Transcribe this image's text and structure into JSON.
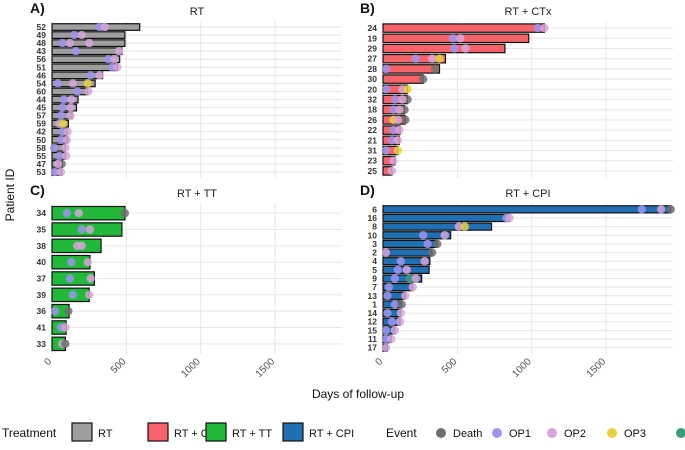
{
  "figure": {
    "ylabel": "Patient ID",
    "xlabel": "Days of follow-up"
  },
  "colors": {
    "RT": "#9e9e9e",
    "RT + CTx": "#f8636a",
    "RT + TT": "#22b83a",
    "RT + CPI": "#1f6fb2",
    "Death": "#6e6e6e",
    "OP1": "#9e94ee",
    "OP2": "#d6a6d8",
    "OP3": "#e5d23e",
    "OP4": "#3f9a7c",
    "grid": "#e6e6e6"
  },
  "legend": {
    "treatment_title": "Treatment",
    "treatments": [
      "RT",
      "RT + CTx",
      "RT + TT",
      "RT + CPI"
    ],
    "event_title": "Event",
    "events": [
      "Death",
      "OP1",
      "OP2",
      "OP3"
    ]
  },
  "chart_data": [
    {
      "type": "bar",
      "orientation": "horizontal",
      "tag": "A)",
      "title": "RT",
      "xlim": [
        0,
        1950
      ],
      "xticks": [],
      "series": "RT",
      "patients": [
        "52",
        "49",
        "48",
        "43",
        "56",
        "51",
        "46",
        "54",
        "60",
        "44",
        "45",
        "57",
        "59",
        "42",
        "50",
        "58",
        "55",
        "47",
        "53"
      ],
      "values": [
        590,
        490,
        490,
        470,
        455,
        440,
        340,
        290,
        240,
        175,
        165,
        135,
        110,
        100,
        105,
        90,
        90,
        70,
        65
      ],
      "events": [
        [
          {
            "day": 320,
            "event": "OP1"
          },
          {
            "day": 355,
            "event": "OP2"
          }
        ],
        [
          {
            "day": 150,
            "event": "OP1"
          },
          {
            "day": 200,
            "event": "OP2"
          }
        ],
        [
          {
            "day": 70,
            "event": "OP1"
          },
          {
            "day": 120,
            "event": "OP2"
          },
          {
            "day": 250,
            "event": "OP2"
          }
        ],
        [
          {
            "day": 160,
            "event": "OP1"
          },
          {
            "day": 450,
            "event": "OP2"
          }
        ],
        [
          {
            "day": 380,
            "event": "OP1"
          },
          {
            "day": 420,
            "event": "OP2"
          }
        ],
        [
          {
            "day": 405,
            "event": "OP1"
          },
          {
            "day": 440,
            "event": "OP2"
          }
        ],
        [
          {
            "day": 260,
            "event": "OP1"
          },
          {
            "day": 320,
            "event": "OP2"
          }
        ],
        [
          {
            "day": 40,
            "event": "OP1"
          },
          {
            "day": 140,
            "event": "OP2"
          },
          {
            "day": 240,
            "event": "OP3"
          }
        ],
        [
          {
            "day": 170,
            "event": "OP1"
          },
          {
            "day": 245,
            "event": "OP2"
          }
        ],
        [
          {
            "day": 80,
            "event": "OP1"
          },
          {
            "day": 130,
            "event": "OP2"
          }
        ],
        [
          {
            "day": 70,
            "event": "OP1"
          },
          {
            "day": 125,
            "event": "OP2"
          }
        ],
        [
          {
            "day": 60,
            "event": "OP1"
          },
          {
            "day": 125,
            "event": "OP2"
          }
        ],
        [
          {
            "day": 50,
            "event": "OP2"
          },
          {
            "day": 75,
            "event": "OP3"
          }
        ],
        [
          {
            "day": 70,
            "event": "OP1"
          },
          {
            "day": 105,
            "event": "OP2"
          }
        ],
        [
          {
            "day": 60,
            "event": "OP1"
          },
          {
            "day": 100,
            "event": "OP2"
          }
        ],
        [
          {
            "day": 15,
            "event": "OP1"
          },
          {
            "day": 90,
            "event": "OP2"
          }
        ],
        [
          {
            "day": 50,
            "event": "OP1"
          },
          {
            "day": 95,
            "event": "OP2"
          }
        ],
        [
          {
            "day": 65,
            "event": "Death"
          },
          {
            "day": 40,
            "event": "OP2"
          }
        ],
        [
          {
            "day": 20,
            "event": "OP1"
          },
          {
            "day": 60,
            "event": "OP2"
          }
        ]
      ]
    },
    {
      "type": "bar",
      "orientation": "horizontal",
      "tag": "B)",
      "title": "RT + CTx",
      "xlim": [
        0,
        1950
      ],
      "xticks": [],
      "series": "RT + CTx",
      "patients": [
        "24",
        "19",
        "29",
        "27",
        "28",
        "30",
        "20",
        "32",
        "18",
        "26",
        "22",
        "21",
        "31",
        "23",
        "25"
      ],
      "values": [
        1085,
        980,
        820,
        420,
        380,
        270,
        165,
        165,
        145,
        150,
        115,
        110,
        100,
        80,
        60
      ],
      "events": [
        [
          {
            "day": 1040,
            "event": "OP1"
          },
          {
            "day": 1085,
            "event": "OP2"
          }
        ],
        [
          {
            "day": 470,
            "event": "OP1"
          },
          {
            "day": 520,
            "event": "OP2"
          }
        ],
        [
          {
            "day": 480,
            "event": "OP1"
          },
          {
            "day": 555,
            "event": "OP2"
          }
        ],
        [
          {
            "day": 220,
            "event": "OP1"
          },
          {
            "day": 330,
            "event": "OP2"
          },
          {
            "day": 380,
            "event": "OP3"
          }
        ],
        [
          {
            "day": 20,
            "event": "OP1"
          },
          {
            "day": 350,
            "event": "Death"
          }
        ],
        [
          {
            "day": 270,
            "event": "Death"
          }
        ],
        [
          {
            "day": 20,
            "event": "OP1"
          },
          {
            "day": 130,
            "event": "OP2"
          },
          {
            "day": 165,
            "event": "OP3"
          }
        ],
        [
          {
            "day": 165,
            "event": "Death"
          },
          {
            "day": 80,
            "event": "OP1"
          },
          {
            "day": 130,
            "event": "OP2"
          }
        ],
        [
          {
            "day": 145,
            "event": "Death"
          },
          {
            "day": 70,
            "event": "OP1"
          },
          {
            "day": 110,
            "event": "OP2"
          }
        ],
        [
          {
            "day": 150,
            "event": "Death"
          },
          {
            "day": 70,
            "event": "OP3"
          },
          {
            "day": 100,
            "event": "OP2"
          }
        ],
        [
          {
            "day": 70,
            "event": "OP1"
          },
          {
            "day": 110,
            "event": "OP2"
          }
        ],
        [
          {
            "day": 60,
            "event": "OP1"
          },
          {
            "day": 100,
            "event": "OP2"
          }
        ],
        [
          {
            "day": 20,
            "event": "OP1"
          },
          {
            "day": 100,
            "event": "OP3"
          }
        ],
        [
          {
            "day": 70,
            "event": "OP2"
          }
        ],
        [
          {
            "day": 60,
            "event": "OP2"
          }
        ]
      ]
    },
    {
      "type": "bar",
      "orientation": "horizontal",
      "tag": "C)",
      "title": "RT + TT",
      "xlim": [
        0,
        1950
      ],
      "xticks": [
        0,
        500,
        1000,
        1500
      ],
      "series": "RT + TT",
      "patients": [
        "34",
        "35",
        "38",
        "40",
        "37",
        "39",
        "36",
        "41",
        "33"
      ],
      "values": [
        490,
        470,
        330,
        255,
        285,
        250,
        115,
        95,
        90
      ],
      "events": [
        [
          {
            "day": 490,
            "event": "Death"
          },
          {
            "day": 100,
            "event": "OP1"
          },
          {
            "day": 180,
            "event": "OP2"
          }
        ],
        [
          {
            "day": 200,
            "event": "OP1"
          },
          {
            "day": 255,
            "event": "OP2"
          }
        ],
        [
          {
            "day": 170,
            "event": "OP2"
          },
          {
            "day": 200,
            "event": "OP2"
          }
        ],
        [
          {
            "day": 130,
            "event": "OP1"
          },
          {
            "day": 240,
            "event": "OP2"
          }
        ],
        [
          {
            "day": 120,
            "event": "OP1"
          },
          {
            "day": 260,
            "event": "OP2"
          }
        ],
        [
          {
            "day": 140,
            "event": "OP1"
          },
          {
            "day": 250,
            "event": "OP2"
          }
        ],
        [
          {
            "day": 110,
            "event": "Death"
          },
          {
            "day": 20,
            "event": "OP1"
          }
        ],
        [
          {
            "day": 60,
            "event": "OP1"
          },
          {
            "day": 90,
            "event": "OP2"
          }
        ],
        [
          {
            "day": 70,
            "event": "OP2"
          },
          {
            "day": 90,
            "event": "Death"
          }
        ]
      ]
    },
    {
      "type": "bar",
      "orientation": "horizontal",
      "tag": "D)",
      "title": "RT + CPI",
      "xlim": [
        0,
        1950
      ],
      "xticks": [
        0,
        500,
        1000,
        1500
      ],
      "series": "RT + CPI",
      "patients": [
        "6",
        "16",
        "8",
        "10",
        "3",
        "2",
        "4",
        "5",
        "9",
        "7",
        "13",
        "1",
        "14",
        "12",
        "15",
        "11",
        "17"
      ],
      "values": [
        1935,
        850,
        730,
        455,
        365,
        330,
        315,
        310,
        260,
        200,
        150,
        125,
        120,
        115,
        80,
        55,
        30
      ],
      "events": [
        [
          {
            "day": 1740,
            "event": "OP1"
          },
          {
            "day": 1870,
            "event": "OP2"
          },
          {
            "day": 1935,
            "event": "Death"
          }
        ],
        [
          {
            "day": 830,
            "event": "OP1"
          },
          {
            "day": 850,
            "event": "OP2"
          }
        ],
        [
          {
            "day": 510,
            "event": "OP2"
          },
          {
            "day": 550,
            "event": "OP3"
          }
        ],
        [
          {
            "day": 270,
            "event": "OP1"
          },
          {
            "day": 415,
            "event": "OP2"
          }
        ],
        [
          {
            "day": 300,
            "event": "OP1"
          },
          {
            "day": 365,
            "event": "Death"
          }
        ],
        [
          {
            "day": 20,
            "event": "OP2"
          },
          {
            "day": 330,
            "event": "Death"
          }
        ],
        [
          {
            "day": 120,
            "event": "OP1"
          },
          {
            "day": 280,
            "event": "OP2"
          }
        ],
        [
          {
            "day": 100,
            "event": "OP1"
          },
          {
            "day": 160,
            "event": "OP2"
          }
        ],
        [
          {
            "day": 80,
            "event": "OP1"
          },
          {
            "day": 180,
            "event": "OP4"
          },
          {
            "day": 220,
            "event": "OP2"
          }
        ],
        [
          {
            "day": 40,
            "event": "OP1"
          },
          {
            "day": 200,
            "event": "OP2"
          }
        ],
        [
          {
            "day": 30,
            "event": "OP1"
          },
          {
            "day": 150,
            "event": "OP2"
          }
        ],
        [
          {
            "day": 80,
            "event": "OP1"
          },
          {
            "day": 125,
            "event": "Death"
          }
        ],
        [
          {
            "day": 30,
            "event": "OP1"
          },
          {
            "day": 120,
            "event": "OP2"
          }
        ],
        [
          {
            "day": 60,
            "event": "OP1"
          },
          {
            "day": 115,
            "event": "OP2"
          }
        ],
        [
          {
            "day": 20,
            "event": "OP1"
          },
          {
            "day": 80,
            "event": "OP2"
          }
        ],
        [
          {
            "day": 20,
            "event": "OP1"
          },
          {
            "day": 55,
            "event": "OP2"
          }
        ],
        [
          {
            "day": 20,
            "event": "OP2"
          }
        ]
      ]
    }
  ]
}
